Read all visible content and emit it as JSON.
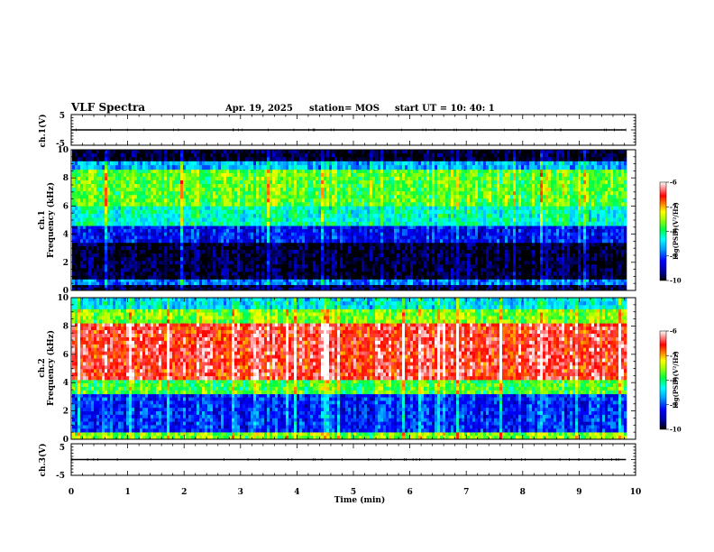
{
  "header": {
    "title": "VLF Spectra",
    "date": "Apr. 19, 2025",
    "station": "station= MOS",
    "start": "start  UT  =   10: 40: 1"
  },
  "chart_data": [
    {
      "type": "line",
      "panel": "ch1-waveform",
      "ylabel": "ch.1(V)",
      "ylim": [
        -5,
        5
      ],
      "y_tick_labels": [
        "5",
        "-5"
      ],
      "x": [
        0,
        9.83
      ],
      "y": [
        0,
        0
      ]
    },
    {
      "type": "heatmap",
      "panel": "ch1-spectrogram",
      "ylabel_line1": "ch.1",
      "ylabel_line2": "Frequency (kHz)",
      "ylim": [
        0,
        10
      ],
      "y_ticks": [
        0,
        2,
        4,
        6,
        8,
        10
      ],
      "xlim": [
        0,
        9.83
      ],
      "colorbar": {
        "label": "log(PSD)(V²/Hz)",
        "range": [
          -10,
          -6
        ],
        "tick_labels": [
          "-6",
          "-7",
          "-8",
          "-9",
          "-10"
        ]
      },
      "bands": [
        {
          "f_lo": 0.0,
          "f_hi": 0.4,
          "level": -9.8
        },
        {
          "f_lo": 0.4,
          "f_hi": 0.8,
          "level": -8.8
        },
        {
          "f_lo": 0.8,
          "f_hi": 3.4,
          "level": -9.9
        },
        {
          "f_lo": 3.4,
          "f_hi": 4.6,
          "level": -9.2
        },
        {
          "f_lo": 4.6,
          "f_hi": 6.0,
          "level": -8.2
        },
        {
          "f_lo": 6.0,
          "f_hi": 8.6,
          "level": -7.7
        },
        {
          "f_lo": 8.6,
          "f_hi": 9.2,
          "level": -8.6
        },
        {
          "f_lo": 9.2,
          "f_hi": 10.0,
          "level": -9.9
        }
      ]
    },
    {
      "type": "heatmap",
      "panel": "ch2-spectrogram",
      "ylabel_line1": "ch.2",
      "ylabel_line2": "Frequency (kHz)",
      "ylim": [
        0,
        10
      ],
      "y_ticks": [
        0,
        2,
        4,
        6,
        8,
        10
      ],
      "xlim": [
        0,
        9.83
      ],
      "colorbar": {
        "label": "log(PSD)(V²/Hz)",
        "range": [
          -10,
          -6
        ],
        "tick_labels": [
          "-6",
          "-7",
          "-8",
          "-9",
          "-10"
        ]
      },
      "bands": [
        {
          "f_lo": 0.0,
          "f_hi": 0.5,
          "level": -7.6
        },
        {
          "f_lo": 0.5,
          "f_hi": 3.2,
          "level": -9.1
        },
        {
          "f_lo": 3.2,
          "f_hi": 4.2,
          "level": -7.8
        },
        {
          "f_lo": 4.2,
          "f_hi": 8.2,
          "level": -6.5
        },
        {
          "f_lo": 8.2,
          "f_hi": 9.2,
          "level": -7.6
        },
        {
          "f_lo": 9.2,
          "f_hi": 10.0,
          "level": -8.4
        }
      ]
    },
    {
      "type": "line",
      "panel": "ch3-waveform",
      "ylabel": "ch.3(V)",
      "ylim": [
        -5,
        5
      ],
      "y_tick_labels": [
        "5",
        "-5"
      ],
      "x": [
        0,
        9.83
      ],
      "y": [
        0,
        0
      ]
    }
  ],
  "x_axis": {
    "label": "Time  (min)",
    "range": [
      0,
      10
    ],
    "tick_labels": [
      "0",
      "1",
      "2",
      "3",
      "4",
      "5",
      "6",
      "7",
      "8",
      "9",
      "10"
    ]
  }
}
